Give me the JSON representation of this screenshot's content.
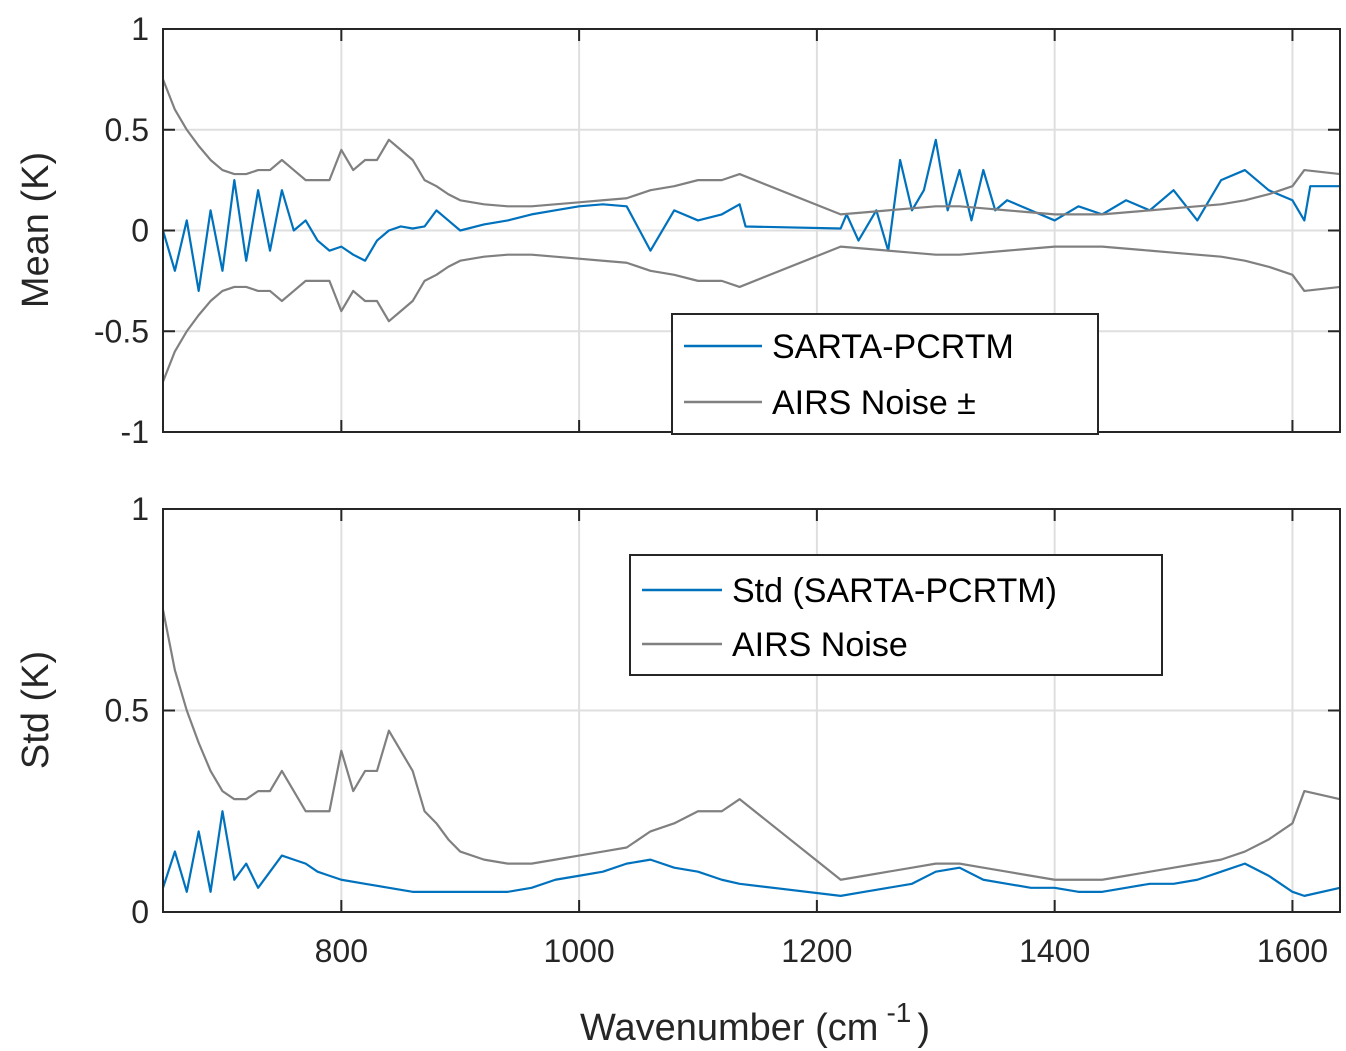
{
  "chart_data": [
    {
      "type": "line",
      "xlim": [
        650,
        1640
      ],
      "ylim": [
        -1,
        1
      ],
      "ylabel": "Mean (K)",
      "xlabel": "",
      "yticks": [
        -1,
        -0.5,
        0,
        0.5,
        1
      ],
      "ytick_labels": [
        "-1",
        "-0.5",
        "0",
        "0.5",
        "1"
      ],
      "xticks": [
        800,
        1000,
        1200,
        1400,
        1600
      ],
      "grid": true,
      "legend_position": "bottom-right",
      "legend": [
        {
          "label": "SARTA-PCRTM",
          "color": "#0072BD"
        },
        {
          "label": "AIRS Noise ±",
          "color": "#808080"
        }
      ],
      "series": [
        {
          "name": "SARTA-PCRTM",
          "color": "#0072BD",
          "x": [
            650,
            660,
            670,
            680,
            690,
            700,
            710,
            720,
            730,
            740,
            750,
            760,
            770,
            780,
            790,
            800,
            810,
            820,
            830,
            840,
            850,
            860,
            870,
            880,
            890,
            900,
            920,
            940,
            960,
            980,
            1000,
            1020,
            1040,
            1060,
            1080,
            1100,
            1120,
            1135,
            1140,
            1220,
            1225,
            1235,
            1250,
            1260,
            1270,
            1280,
            1290,
            1300,
            1310,
            1320,
            1330,
            1340,
            1350,
            1360,
            1380,
            1400,
            1420,
            1440,
            1460,
            1480,
            1500,
            1520,
            1540,
            1560,
            1580,
            1600,
            1610,
            1615,
            1640
          ],
          "y": [
            0.0,
            -0.2,
            0.05,
            -0.3,
            0.1,
            -0.2,
            0.25,
            -0.15,
            0.2,
            -0.1,
            0.2,
            0.0,
            0.05,
            -0.05,
            -0.1,
            -0.08,
            -0.12,
            -0.15,
            -0.05,
            0.0,
            0.02,
            0.01,
            0.02,
            0.1,
            0.05,
            0.0,
            0.03,
            0.05,
            0.08,
            0.1,
            0.12,
            0.13,
            0.12,
            -0.1,
            0.1,
            0.05,
            0.08,
            0.13,
            0.02,
            0.01,
            0.08,
            -0.05,
            0.1,
            -0.1,
            0.35,
            0.1,
            0.2,
            0.45,
            0.1,
            0.3,
            0.05,
            0.3,
            0.1,
            0.15,
            0.1,
            0.05,
            0.12,
            0.08,
            0.15,
            0.1,
            0.2,
            0.05,
            0.25,
            0.3,
            0.2,
            0.15,
            0.05,
            0.22,
            0.22
          ]
        },
        {
          "name": "AIRS Noise ±",
          "color": "#808080",
          "x": [
            650,
            660,
            670,
            680,
            690,
            700,
            710,
            720,
            730,
            740,
            750,
            760,
            770,
            780,
            790,
            800,
            810,
            820,
            830,
            840,
            850,
            860,
            870,
            880,
            890,
            900,
            920,
            940,
            960,
            980,
            1000,
            1020,
            1040,
            1060,
            1080,
            1100,
            1120,
            1135,
            1220,
            1240,
            1260,
            1280,
            1300,
            1320,
            1340,
            1360,
            1380,
            1400,
            1420,
            1440,
            1460,
            1480,
            1500,
            1520,
            1540,
            1560,
            1580,
            1600,
            1610,
            1640
          ],
          "y": [
            0.75,
            0.6,
            0.5,
            0.42,
            0.35,
            0.3,
            0.28,
            0.28,
            0.3,
            0.3,
            0.35,
            0.3,
            0.25,
            0.25,
            0.25,
            0.4,
            0.3,
            0.35,
            0.35,
            0.45,
            0.4,
            0.35,
            0.25,
            0.22,
            0.18,
            0.15,
            0.13,
            0.12,
            0.12,
            0.13,
            0.14,
            0.15,
            0.16,
            0.2,
            0.22,
            0.25,
            0.25,
            0.28,
            0.08,
            0.09,
            0.1,
            0.11,
            0.12,
            0.12,
            0.11,
            0.1,
            0.09,
            0.08,
            0.08,
            0.08,
            0.09,
            0.1,
            0.11,
            0.12,
            0.13,
            0.15,
            0.18,
            0.22,
            0.3,
            0.28
          ]
        }
      ]
    },
    {
      "type": "line",
      "xlim": [
        650,
        1640
      ],
      "ylim": [
        0,
        1
      ],
      "ylabel": "Std (K)",
      "xlabel": "Wavenumber (cm -1 )",
      "xlabel_main": "Wavenumber (cm",
      "xlabel_sup": "-1",
      "xlabel_close": ")",
      "yticks": [
        0,
        0.5,
        1
      ],
      "ytick_labels": [
        "0",
        "0.5",
        "1"
      ],
      "xticks": [
        800,
        1000,
        1200,
        1400,
        1600
      ],
      "xtick_labels": [
        "800",
        "1000",
        "1200",
        "1400",
        "1600"
      ],
      "grid": true,
      "legend_position": "top-right",
      "legend": [
        {
          "label": "Std (SARTA-PCRTM)",
          "color": "#0072BD"
        },
        {
          "label": "AIRS Noise",
          "color": "#808080"
        }
      ],
      "series": [
        {
          "name": "Std (SARTA-PCRTM)",
          "color": "#0072BD",
          "x": [
            650,
            660,
            670,
            680,
            690,
            700,
            710,
            720,
            730,
            740,
            750,
            760,
            770,
            780,
            790,
            800,
            820,
            840,
            860,
            880,
            900,
            920,
            940,
            960,
            980,
            1000,
            1020,
            1040,
            1060,
            1080,
            1100,
            1120,
            1135,
            1220,
            1240,
            1260,
            1280,
            1300,
            1320,
            1340,
            1360,
            1380,
            1400,
            1420,
            1440,
            1460,
            1480,
            1500,
            1520,
            1540,
            1560,
            1580,
            1600,
            1610,
            1640
          ],
          "y": [
            0.06,
            0.15,
            0.05,
            0.2,
            0.05,
            0.25,
            0.08,
            0.12,
            0.06,
            0.1,
            0.14,
            0.13,
            0.12,
            0.1,
            0.09,
            0.08,
            0.07,
            0.06,
            0.05,
            0.05,
            0.05,
            0.05,
            0.05,
            0.06,
            0.08,
            0.09,
            0.1,
            0.12,
            0.13,
            0.11,
            0.1,
            0.08,
            0.07,
            0.04,
            0.05,
            0.06,
            0.07,
            0.1,
            0.11,
            0.08,
            0.07,
            0.06,
            0.06,
            0.05,
            0.05,
            0.06,
            0.07,
            0.07,
            0.08,
            0.1,
            0.12,
            0.09,
            0.05,
            0.04,
            0.06
          ]
        },
        {
          "name": "AIRS Noise",
          "color": "#808080",
          "x": [
            650,
            660,
            670,
            680,
            690,
            700,
            710,
            720,
            730,
            740,
            750,
            760,
            770,
            780,
            790,
            800,
            810,
            820,
            830,
            840,
            850,
            860,
            870,
            880,
            890,
            900,
            920,
            940,
            960,
            980,
            1000,
            1020,
            1040,
            1060,
            1080,
            1100,
            1120,
            1135,
            1220,
            1240,
            1260,
            1280,
            1300,
            1320,
            1340,
            1360,
            1380,
            1400,
            1420,
            1440,
            1460,
            1480,
            1500,
            1520,
            1540,
            1560,
            1580,
            1600,
            1610,
            1640
          ],
          "y": [
            0.75,
            0.6,
            0.5,
            0.42,
            0.35,
            0.3,
            0.28,
            0.28,
            0.3,
            0.3,
            0.35,
            0.3,
            0.25,
            0.25,
            0.25,
            0.4,
            0.3,
            0.35,
            0.35,
            0.45,
            0.4,
            0.35,
            0.25,
            0.22,
            0.18,
            0.15,
            0.13,
            0.12,
            0.12,
            0.13,
            0.14,
            0.15,
            0.16,
            0.2,
            0.22,
            0.25,
            0.25,
            0.28,
            0.08,
            0.09,
            0.1,
            0.11,
            0.12,
            0.12,
            0.11,
            0.1,
            0.09,
            0.08,
            0.08,
            0.08,
            0.09,
            0.1,
            0.11,
            0.12,
            0.13,
            0.15,
            0.18,
            0.22,
            0.3,
            0.28
          ]
        }
      ]
    }
  ]
}
